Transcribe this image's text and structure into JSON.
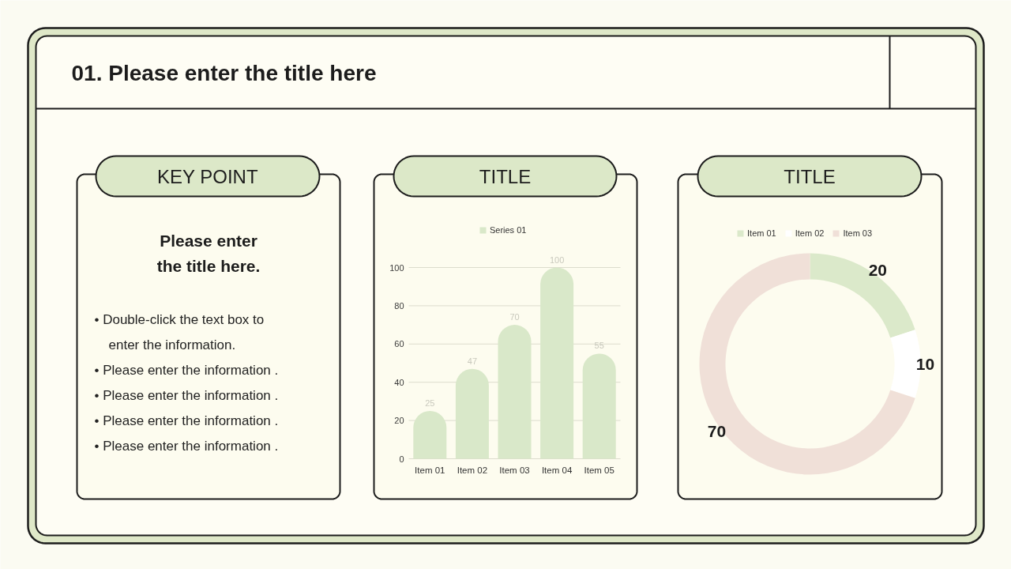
{
  "chart_data": [
    {
      "type": "other",
      "title": "01. Please enter the title here"
    },
    {
      "type": "other",
      "title": "KEY POINT",
      "subtitle": "Please enter the title here.",
      "annotations": [
        "• Double-click the text box to enter the information.",
        "• Please enter the information .",
        "• Please enter the information .",
        "• Please enter the information .",
        "• Please enter the information ."
      ]
    },
    {
      "type": "bar",
      "title": "TITLE",
      "categories": [
        "Item 01",
        "Item 02",
        "Item 03",
        "Item 04",
        "Item 05"
      ],
      "series": [
        {
          "name": "Series 01",
          "color": "#d9e8c9",
          "values": [
            25,
            47,
            70,
            100,
            55
          ]
        }
      ],
      "ylim": [
        0,
        100
      ],
      "yticks": [
        0,
        20,
        40,
        60,
        80,
        100
      ],
      "grid": "y",
      "legend": "top",
      "data_labels": true
    },
    {
      "type": "donut",
      "title": "TITLE",
      "categories": [
        "Item 01",
        "Item 02",
        "Item 03"
      ],
      "values": [
        20,
        10,
        70
      ],
      "colors": [
        "#dbe9ca",
        "#ffffff",
        "#f0e0d8"
      ],
      "legend": "top",
      "data_labels": true
    }
  ]
}
